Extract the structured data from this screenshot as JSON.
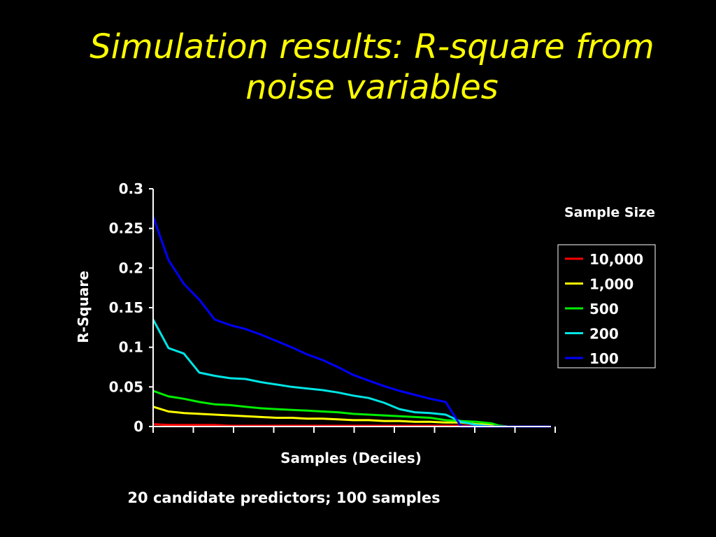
{
  "slide": {
    "title_line1": "Simulation results: R-square from",
    "title_line2": "noise variables",
    "footnote": "20 candidate predictors; 100 samples"
  },
  "colors": {
    "background": "#000000",
    "title": "#ffff00",
    "text": "#ffffff"
  },
  "chart_data": {
    "type": "line",
    "title": "",
    "xlabel": "Samples (Deciles)",
    "ylabel": "R-Square",
    "ylim": [
      0,
      0.3
    ],
    "yticks": [
      "0",
      "0.05",
      "0.1",
      "0.15",
      "0.2",
      "0.25",
      "0.3"
    ],
    "x_tick_count": 10,
    "x": [
      1,
      5,
      9,
      13,
      17,
      21,
      25,
      29,
      33,
      37,
      41,
      45,
      49,
      53,
      57,
      61,
      65,
      69,
      73,
      77,
      81,
      85,
      89,
      91,
      93,
      95,
      97,
      99,
      100
    ],
    "legend": {
      "title": "Sample Size",
      "position": "right"
    },
    "grid": false,
    "series": [
      {
        "name": "10,000",
        "color": "#ff0000",
        "values": [
          0.003,
          0.002,
          0.002,
          0.002,
          0.002,
          0.001,
          0.001,
          0.001,
          0.001,
          0.001,
          0.001,
          0.001,
          0.001,
          0.001,
          0.001,
          0.001,
          0.001,
          0.001,
          0.001,
          0.001,
          0.001,
          0.001,
          0.001,
          0.001,
          0.0,
          0.0,
          0.0,
          0.0,
          0.0
        ]
      },
      {
        "name": "1,000",
        "color": "#ffff00",
        "values": [
          0.025,
          0.019,
          0.017,
          0.016,
          0.015,
          0.014,
          0.013,
          0.012,
          0.011,
          0.011,
          0.01,
          0.01,
          0.009,
          0.008,
          0.008,
          0.007,
          0.007,
          0.006,
          0.006,
          0.005,
          0.005,
          0.003,
          0.002,
          0.001,
          0.0,
          0.0,
          0.0,
          0.0,
          0.0
        ]
      },
      {
        "name": "500",
        "color": "#00ee00",
        "values": [
          0.045,
          0.038,
          0.035,
          0.031,
          0.028,
          0.027,
          0.025,
          0.023,
          0.022,
          0.021,
          0.02,
          0.019,
          0.018,
          0.016,
          0.015,
          0.014,
          0.013,
          0.012,
          0.011,
          0.008,
          0.007,
          0.006,
          0.004,
          0.001,
          0.0,
          0.0,
          0.0,
          0.0,
          0.0
        ]
      },
      {
        "name": "200",
        "color": "#00e5e5",
        "values": [
          0.135,
          0.099,
          0.092,
          0.068,
          0.064,
          0.061,
          0.06,
          0.056,
          0.053,
          0.05,
          0.048,
          0.046,
          0.043,
          0.039,
          0.036,
          0.03,
          0.022,
          0.018,
          0.017,
          0.015,
          0.006,
          0.002,
          0.0,
          0.0,
          0.0,
          0.0,
          0.0,
          0.0,
          0.0
        ]
      },
      {
        "name": "100",
        "color": "#0000ff",
        "values": [
          0.265,
          0.21,
          0.18,
          0.16,
          0.135,
          0.128,
          0.123,
          0.116,
          0.108,
          0.1,
          0.091,
          0.084,
          0.075,
          0.065,
          0.058,
          0.051,
          0.045,
          0.04,
          0.035,
          0.031,
          0.0,
          0.0,
          0.0,
          0.0,
          0.0,
          0.0,
          0.0,
          0.0,
          0.0
        ]
      }
    ]
  }
}
